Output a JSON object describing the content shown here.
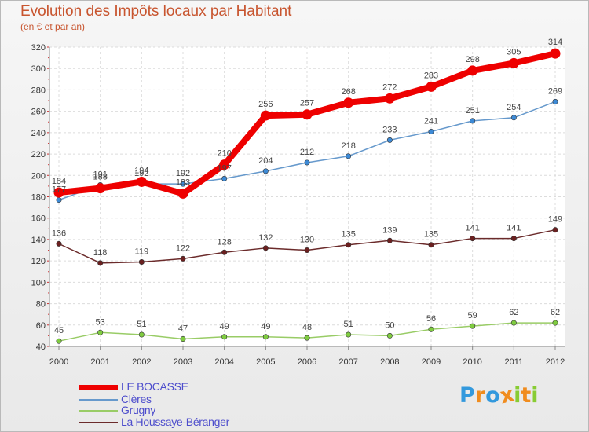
{
  "header": {
    "title": "Evolution des Impôts locaux par Habitant",
    "subtitle": "(en € et par an)"
  },
  "chart_data": {
    "type": "line",
    "title": "Evolution des Impôts locaux par Habitant",
    "subtitle": "(en € et par an)",
    "xlabel": "",
    "ylabel": "",
    "x": [
      2000,
      2001,
      2002,
      2003,
      2004,
      2005,
      2006,
      2007,
      2008,
      2009,
      2010,
      2011,
      2012
    ],
    "ylim": [
      40,
      320
    ],
    "yticks": [
      40,
      60,
      80,
      100,
      120,
      140,
      160,
      180,
      200,
      220,
      240,
      260,
      280,
      300,
      320
    ],
    "grid": true,
    "legend_position": "bottom-left",
    "series": [
      {
        "name": "Clères",
        "color": "#6699cc",
        "marker_color": "#3d8ad6",
        "values": [
          177,
          191,
          192,
          192,
          197,
          204,
          212,
          218,
          233,
          241,
          251,
          254,
          269
        ],
        "label_texts": [
          "177",
          "191",
          "192",
          "192",
          "197",
          "204",
          "212",
          "218",
          "233",
          "241",
          "251",
          "254",
          "269"
        ]
      },
      {
        "name": "Grugny",
        "color": "#99cc66",
        "marker_color": "#7fcc40",
        "values": [
          45,
          53,
          51,
          47,
          49,
          49,
          48,
          51,
          50,
          56,
          59,
          62,
          62
        ],
        "label_texts": [
          "45",
          "53",
          "51",
          "47",
          "49",
          "49",
          "48",
          "51",
          "50",
          "56",
          "59",
          "62",
          "62"
        ]
      },
      {
        "name": "La Houssaye-Béranger",
        "color": "#6b2b2b",
        "marker_color": "#6b2020",
        "values": [
          136,
          118,
          119,
          122,
          128,
          132,
          130,
          135,
          139,
          135,
          141,
          141,
          149
        ],
        "label_texts": [
          "136",
          "118",
          "119",
          "122",
          "128",
          "132",
          "130",
          "135",
          "139",
          "135",
          "141",
          "141",
          "149"
        ]
      },
      {
        "name": "LE BOCASSE",
        "color": "#ee0000",
        "marker_color": "#ee0000",
        "values": [
          184,
          188,
          194,
          183,
          210,
          256,
          257,
          268,
          272,
          283,
          298,
          305,
          314
        ],
        "label_texts": [
          "184",
          "188",
          "194",
          "183",
          "210",
          "256",
          "257",
          "268",
          "272",
          "283",
          "298",
          "305",
          "314"
        ]
      }
    ]
  },
  "legend": {
    "items": [
      {
        "label": "LE BOCASSE",
        "color": "#ee0000",
        "text_color": "#4d4dcc"
      },
      {
        "label": "Clères",
        "color": "#6699cc",
        "text_color": "#4d4dcc"
      },
      {
        "label": "Grugny",
        "color": "#99cc66",
        "text_color": "#4d4dcc"
      },
      {
        "label": "La Houssaye-Béranger",
        "color": "#6b2b2b",
        "text_color": "#4d4dcc"
      }
    ]
  },
  "logo": {
    "text": "Proxiti",
    "letters": [
      "P",
      "r",
      "o",
      "x",
      "i",
      "t",
      "i"
    ],
    "colors": [
      "#3399dd",
      "#f08c1e",
      "#3399dd",
      "#f08c1e",
      "#88cc33",
      "#f08c1e",
      "#88cc33"
    ]
  }
}
